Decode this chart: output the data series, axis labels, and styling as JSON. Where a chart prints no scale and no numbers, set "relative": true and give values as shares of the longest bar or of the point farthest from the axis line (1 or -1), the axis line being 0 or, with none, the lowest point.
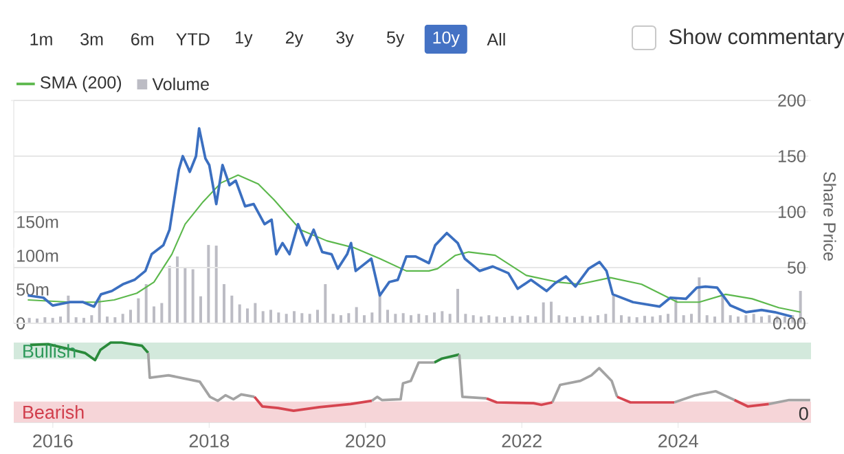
{
  "chart_data": [
    {
      "type": "line",
      "annotations": [
        "1m",
        "3m",
        "6m",
        "YTD",
        "1y",
        "2y",
        "3y",
        "5y",
        "10y",
        "All",
        "Show commentary"
      ],
      "ylabel": "Share Price",
      "xlim": [
        2015.5,
        2025.7
      ],
      "xticks": [
        2016,
        2018,
        2020,
        2022,
        2024
      ],
      "tick_labels": "y",
      "ylim": [
        0,
        200
      ],
      "yticks": [
        {
          "value": 0,
          "label": "0.00"
        },
        50,
        100,
        150,
        200
      ],
      "y2lim": [
        0,
        330
      ],
      "y2ticks": [
        0,
        {
          "value": 50,
          "label": "50m"
        },
        {
          "value": 100,
          "label": "100m"
        },
        {
          "value": 150,
          "label": "150m"
        }
      ],
      "grid": "y",
      "legend": "top left",
      "series": [
        {
          "type": "line",
          "name": "SMA (200)",
          "color": "#5cb84c",
          "x": [
            2015.68,
            2016.22,
            2016.56,
            2016.79,
            2017.08,
            2017.3,
            2017.53,
            2017.7,
            2017.93,
            2018.16,
            2018.38,
            2018.64,
            2018.84,
            2019.18,
            2019.52,
            2019.86,
            2020.2,
            2020.54,
            2020.83,
            2020.94,
            2021.17,
            2021.34,
            2021.68,
            2022.08,
            2022.48,
            2022.76,
            2023.16,
            2023.56,
            2024.02,
            2024.3,
            2024.64,
            2024.98,
            2025.32,
            2025.6
          ],
          "values": [
            21,
            19,
            19,
            21,
            27,
            37,
            62,
            89,
            109,
            126,
            133,
            125,
            111,
            84,
            74,
            68,
            58,
            47,
            47,
            49,
            61,
            64,
            61,
            43,
            37,
            35,
            41,
            35,
            19,
            19,
            26,
            22,
            14,
            10
          ]
        },
        {
          "type": "bar",
          "name": "Volume",
          "axis": "y2",
          "color": "#bcbcc4",
          "x": [
            2015.7,
            2015.8,
            2015.9,
            2016.0,
            2016.1,
            2016.2,
            2016.3,
            2016.4,
            2016.5,
            2016.6,
            2016.7,
            2016.8,
            2016.9,
            2017.0,
            2017.1,
            2017.2,
            2017.3,
            2017.4,
            2017.5,
            2017.6,
            2017.7,
            2017.8,
            2017.9,
            2018.0,
            2018.1,
            2018.2,
            2018.3,
            2018.4,
            2018.5,
            2018.6,
            2018.7,
            2018.8,
            2018.9,
            2019.0,
            2019.1,
            2019.2,
            2019.3,
            2019.4,
            2019.5,
            2019.6,
            2019.7,
            2019.8,
            2019.9,
            2020.0,
            2020.1,
            2020.2,
            2020.3,
            2020.4,
            2020.5,
            2020.6,
            2020.7,
            2020.8,
            2020.9,
            2021.0,
            2021.1,
            2021.2,
            2021.3,
            2021.4,
            2021.5,
            2021.6,
            2021.7,
            2021.8,
            2021.9,
            2022.0,
            2022.1,
            2022.2,
            2022.3,
            2022.4,
            2022.5,
            2022.6,
            2022.7,
            2022.8,
            2022.9,
            2023.0,
            2023.1,
            2023.2,
            2023.3,
            2023.4,
            2023.5,
            2023.6,
            2023.7,
            2023.8,
            2023.9,
            2024.0,
            2024.1,
            2024.2,
            2024.3,
            2024.4,
            2024.5,
            2024.6,
            2024.7,
            2024.8,
            2024.9,
            2025.0,
            2025.1,
            2025.2,
            2025.3,
            2025.4,
            2025.5,
            2025.6
          ],
          "values": [
            8,
            7,
            9,
            8,
            10,
            41,
            9,
            8,
            12,
            37,
            10,
            9,
            14,
            20,
            37,
            58,
            25,
            30,
            85,
            99,
            82,
            80,
            40,
            116,
            115,
            58,
            41,
            28,
            22,
            30,
            18,
            20,
            16,
            14,
            18,
            15,
            14,
            20,
            58,
            14,
            12,
            15,
            24,
            12,
            16,
            44,
            20,
            14,
            15,
            12,
            14,
            12,
            16,
            18,
            14,
            51,
            14,
            12,
            10,
            12,
            10,
            9,
            11,
            10,
            12,
            10,
            31,
            32,
            12,
            10,
            9,
            11,
            10,
            12,
            14,
            41,
            12,
            10,
            9,
            11,
            10,
            12,
            14,
            37,
            12,
            14,
            68,
            12,
            10,
            41,
            12,
            10,
            12,
            14,
            10,
            12,
            11,
            10,
            12,
            48
          ]
        },
        {
          "type": "line",
          "color": "#3b6fc0",
          "x": [
            2015.68,
            2015.88,
            2016.0,
            2016.22,
            2016.39,
            2016.53,
            2016.62,
            2016.76,
            2016.9,
            2017.05,
            2017.19,
            2017.27,
            2017.42,
            2017.5,
            2017.56,
            2017.62,
            2017.67,
            2017.76,
            2017.84,
            2017.88,
            2017.96,
            2018.01,
            2018.1,
            2018.18,
            2018.27,
            2018.35,
            2018.47,
            2018.58,
            2018.72,
            2018.81,
            2018.87,
            2018.95,
            2019.04,
            2019.15,
            2019.26,
            2019.35,
            2019.46,
            2019.58,
            2019.66,
            2019.78,
            2019.83,
            2019.89,
            2020.09,
            2020.2,
            2020.32,
            2020.43,
            2020.54,
            2020.66,
            2020.83,
            2020.91,
            2021.06,
            2021.2,
            2021.29,
            2021.48,
            2021.65,
            2021.85,
            2021.97,
            2022.14,
            2022.34,
            2022.45,
            2022.59,
            2022.71,
            2022.88,
            2023.02,
            2023.11,
            2023.19,
            2023.45,
            2023.79,
            2023.93,
            2024.13,
            2024.27,
            2024.38,
            2024.53,
            2024.7,
            2024.9,
            2025.1,
            2025.27,
            2025.49
          ],
          "values": [
            25,
            23,
            16,
            19,
            19,
            15,
            26,
            29,
            35,
            39,
            47,
            62,
            70,
            84,
            111,
            138,
            150,
            136,
            150,
            175,
            148,
            142,
            107,
            142,
            124,
            128,
            105,
            107,
            89,
            93,
            62,
            72,
            62,
            89,
            70,
            84,
            64,
            62,
            49,
            62,
            72,
            47,
            58,
            25,
            37,
            39,
            60,
            60,
            54,
            70,
            81,
            72,
            58,
            47,
            51,
            45,
            31,
            39,
            29,
            36,
            42,
            33,
            49,
            55,
            47,
            26,
            19,
            15,
            23,
            22,
            32,
            33,
            32,
            16,
            10,
            12,
            10,
            6
          ]
        }
      ]
    },
    {
      "type": "line",
      "relative": true,
      "xlim": [
        2015.5,
        2025.7
      ],
      "xticks": [
        2016,
        2018,
        2020,
        2022,
        2024
      ],
      "tick_labels": "x",
      "annotations": [
        "0"
      ],
      "bands": [
        {
          "axis": "y",
          "from": 0.79,
          "to": 1.0,
          "label": "Bullish",
          "color": "#d3e9dc"
        },
        {
          "axis": "y",
          "from": 0,
          "to": 0.26,
          "label": "Bearish",
          "color": "#f6d5d8"
        }
      ],
      "x": [
        2015.71,
        2015.94,
        2016.2,
        2016.41,
        2016.54,
        2016.61,
        2016.74,
        2016.88,
        2017.14,
        2017.22,
        2017.24,
        2017.48,
        2017.88,
        2018.01,
        2018.11,
        2018.21,
        2018.31,
        2018.41,
        2018.58,
        2018.68,
        2018.88,
        2019.08,
        2019.41,
        2019.81,
        2020.08,
        2020.15,
        2020.21,
        2020.45,
        2020.48,
        2020.58,
        2020.68,
        2020.88,
        2020.98,
        2021.2,
        2021.24,
        2021.55,
        2021.68,
        2022.15,
        2022.25,
        2022.39,
        2022.49,
        2022.75,
        2022.89,
        2022.99,
        2023.15,
        2023.22,
        2023.39,
        2023.95,
        2024.22,
        2024.48,
        2024.72,
        2024.89,
        2025.16,
        2025.42,
        2025.69
      ],
      "series": [
        {
          "color": "#2a8a3a",
          "values": [
            0.97,
            0.98,
            0.92,
            0.87,
            0.78,
            0.91,
            1.0,
            1.0,
            0.96,
            0.87,
            null,
            null,
            null,
            null,
            null,
            null,
            null,
            null,
            null,
            null,
            null,
            null,
            null,
            null,
            null,
            null,
            null,
            null,
            null,
            null,
            null,
            0.75,
            0.8,
            0.85,
            null,
            null,
            null,
            null,
            null,
            null,
            null,
            null,
            null,
            null,
            null,
            null,
            null,
            null,
            null,
            null,
            null,
            null,
            null,
            null,
            null
          ]
        },
        {
          "color": "#a3a3a3",
          "values": [
            null,
            null,
            null,
            null,
            null,
            null,
            null,
            null,
            null,
            0.87,
            0.56,
            0.59,
            0.51,
            0.32,
            0.27,
            0.34,
            0.29,
            0.35,
            0.32,
            null,
            null,
            null,
            null,
            null,
            0.27,
            0.32,
            0.28,
            0.29,
            0.49,
            0.52,
            0.75,
            0.75,
            null,
            0.85,
            0.32,
            0.3,
            null,
            null,
            null,
            0.25,
            0.47,
            0.52,
            0.59,
            0.68,
            0.52,
            0.32,
            null,
            0.25,
            0.34,
            0.39,
            0.28,
            null,
            0.23,
            0.28,
            0.28
          ]
        },
        {
          "color": "#d64550",
          "values": [
            null,
            null,
            null,
            null,
            null,
            null,
            null,
            null,
            null,
            null,
            null,
            null,
            null,
            null,
            null,
            null,
            null,
            null,
            0.32,
            0.2,
            0.18,
            0.145,
            0.19,
            0.23,
            0.27,
            null,
            null,
            null,
            null,
            null,
            null,
            null,
            null,
            null,
            null,
            0.3,
            0.25,
            0.24,
            0.22,
            0.25,
            null,
            null,
            null,
            null,
            null,
            0.32,
            0.25,
            0.25,
            null,
            null,
            0.28,
            0.2,
            0.23,
            null,
            null
          ]
        }
      ]
    }
  ]
}
